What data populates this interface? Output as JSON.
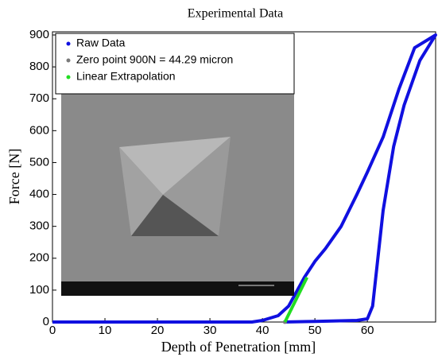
{
  "chart_data": {
    "type": "line",
    "title": "Experimental Data",
    "x_label": "Depth of Penetration [mm]",
    "y_label": "Force [N]",
    "xlim": [
      0,
      73
    ],
    "ylim": [
      0,
      910
    ],
    "xticks": [
      0,
      10,
      20,
      30,
      40,
      50,
      60
    ],
    "yticks": [
      0,
      100,
      200,
      300,
      400,
      500,
      600,
      700,
      800,
      900
    ],
    "legend": "upper left",
    "series": [
      {
        "name": "Raw Data",
        "color": "#1010e0",
        "x": [
          0,
          38,
          40,
          43,
          45,
          46,
          48,
          50,
          52,
          55,
          58,
          60,
          63,
          66,
          69,
          73,
          70,
          67,
          65,
          63,
          62,
          61,
          60,
          58,
          50,
          44
        ],
        "values": [
          0,
          0,
          5,
          20,
          50,
          80,
          140,
          190,
          230,
          300,
          400,
          470,
          580,
          730,
          860,
          900,
          820,
          680,
          550,
          350,
          200,
          50,
          10,
          5,
          2,
          0
        ]
      },
      {
        "name": "Zero point 900N = 44.29 micron",
        "color": "#7a7a7a",
        "x": [
          44.29
        ],
        "values": [
          0
        ]
      },
      {
        "name": "Linear Extrapolation",
        "color": "#22dd22",
        "x": [
          44.29,
          48.5
        ],
        "values": [
          0,
          140
        ]
      }
    ]
  }
}
